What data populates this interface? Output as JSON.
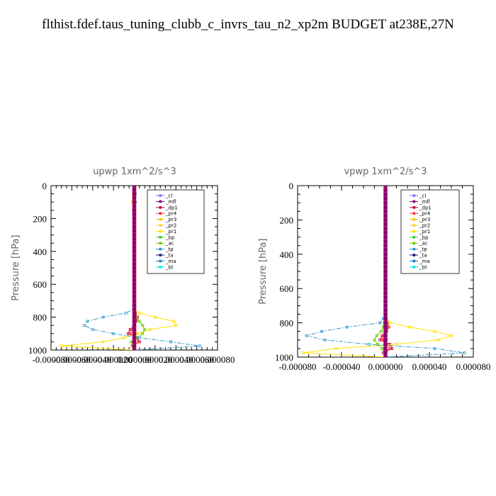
{
  "page_title": "flthist.fdef.taus_tuning_clubb_c_invrs_tau_n2_xp2m  BUDGET at238E,27N",
  "legend_labels": [
    "_cl",
    "_mfl",
    "_dp1",
    "_pr4",
    "_pr3",
    "_pr2",
    "_pr1",
    "_bp",
    "_ac",
    "_tp",
    "_ta",
    "_ma",
    "_bt"
  ],
  "legend_colors": [
    "#9966ff",
    "#7f007f",
    "#bf0040",
    "#ff3333",
    "#ffbf00",
    "#ffcc33",
    "#ffe000",
    "#33cc33",
    "#66cc00",
    "#3399cc",
    "#1a1a80",
    "#1a80c0",
    "#00e5e5"
  ],
  "chart_data": [
    {
      "type": "line",
      "title": "upwp   1xm^2/s^3",
      "ylabel": "Pressure [hPa]",
      "ylim": [
        0,
        1000
      ],
      "y_inverted": true,
      "xlim": [
        -8e-05,
        8e-05
      ],
      "xtick_labels": [
        "-0.000080",
        "-0.000060",
        "-0.000040",
        "-0.000020",
        "0.000000",
        "0.000020",
        "0.000040",
        "0.000060",
        "0.000080"
      ],
      "ytick_labels": [
        "0",
        "200",
        "400",
        "600",
        "800",
        "1000"
      ],
      "pressure_levels": [
        0,
        50,
        100,
        150,
        200,
        250,
        300,
        350,
        400,
        450,
        500,
        550,
        600,
        650,
        700,
        750,
        775,
        800,
        825,
        850,
        875,
        900,
        925,
        950,
        975,
        1000
      ],
      "series": [
        {
          "name": "_cl",
          "values": [
            0,
            0,
            0,
            0,
            0,
            0,
            0,
            0,
            0,
            0,
            0,
            0,
            0,
            0,
            0,
            0,
            0,
            0,
            0,
            0,
            0,
            0,
            0,
            0,
            0,
            0
          ]
        },
        {
          "name": "_mfl",
          "values": [
            0,
            0,
            0,
            0,
            0,
            0,
            0,
            0,
            0,
            0,
            0,
            0,
            0,
            0,
            0,
            0,
            0,
            0,
            0,
            0,
            0,
            0,
            0,
            0,
            0,
            0
          ]
        },
        {
          "name": "_dp1",
          "values": [
            0,
            0,
            0,
            0,
            0,
            0,
            0,
            0,
            0,
            0,
            0,
            0,
            0,
            0,
            0,
            0,
            1e-06,
            3e-06,
            2e-06,
            0,
            -4e-06,
            -6e-06,
            3e-06,
            5e-06,
            -2e-06,
            0
          ]
        },
        {
          "name": "_pr4",
          "values": [
            0,
            0,
            0,
            0,
            0,
            0,
            0,
            0,
            0,
            0,
            0,
            0,
            0,
            0,
            0,
            0,
            1e-06,
            2e-06,
            1e-06,
            0,
            -2e-06,
            -4e-06,
            2e-06,
            4e-06,
            -1e-06,
            0
          ]
        },
        {
          "name": "_pr3",
          "values": [
            0,
            0,
            0,
            0,
            0,
            0,
            0,
            0,
            0,
            0,
            0,
            0,
            0,
            0,
            0,
            0,
            0,
            0,
            0,
            0,
            0,
            0,
            0,
            0,
            0,
            0
          ]
        },
        {
          "name": "_pr2",
          "values": [
            0,
            -1e-06,
            -2e-06,
            -1e-06,
            0,
            0,
            0,
            0,
            0,
            0,
            0,
            0,
            0,
            0,
            0,
            0,
            0,
            0,
            0,
            0,
            0,
            0,
            0,
            0,
            0,
            0
          ]
        },
        {
          "name": "_pr1",
          "values": [
            0,
            -1e-06,
            -1e-06,
            0,
            0,
            0,
            0,
            0,
            0,
            0,
            0,
            0,
            0,
            0,
            0,
            0,
            5e-06,
            2e-05,
            3.8e-05,
            4e-05,
            1.5e-05,
            3e-06,
            -1e-05,
            -3e-05,
            -7e-05,
            0
          ]
        },
        {
          "name": "_bp",
          "values": [
            0,
            0,
            0,
            0,
            0,
            0,
            0,
            0,
            0,
            0,
            0,
            0,
            0,
            0,
            0,
            0,
            0,
            0,
            0,
            0,
            0,
            0,
            0,
            0,
            0,
            0
          ]
        },
        {
          "name": "_ac",
          "values": [
            0,
            0,
            0,
            0,
            0,
            0,
            0,
            0,
            0,
            0,
            0,
            0,
            0,
            0,
            0,
            0,
            0,
            2e-06,
            5e-06,
            8e-06,
            1e-05,
            8e-06,
            3e-06,
            -3e-06,
            -2e-06,
            0
          ]
        },
        {
          "name": "_tp",
          "values": [
            0,
            1e-06,
            1e-06,
            0,
            0,
            0,
            0,
            0,
            0,
            0,
            0,
            0,
            0,
            0,
            0,
            0,
            -8e-06,
            -3e-05,
            -4.5e-05,
            -4.8e-05,
            -4e-05,
            -2e-05,
            5e-06,
            3.5e-05,
            6.3e-05,
            0
          ]
        },
        {
          "name": "_ta",
          "values": [
            0,
            0,
            0,
            0,
            0,
            0,
            0,
            0,
            0,
            0,
            0,
            0,
            0,
            0,
            0,
            0,
            0,
            0,
            0,
            0,
            0,
            0,
            0,
            0,
            0,
            0
          ]
        },
        {
          "name": "_ma",
          "values": [
            0,
            0,
            0,
            0,
            0,
            0,
            0,
            0,
            0,
            0,
            0,
            0,
            0,
            0,
            0,
            0,
            0,
            0,
            0,
            0,
            0,
            0,
            0,
            0,
            0,
            0
          ]
        },
        {
          "name": "_bt",
          "values": [
            0,
            0,
            0,
            0,
            0,
            0,
            0,
            0,
            0,
            0,
            0,
            0,
            0,
            0,
            0,
            0,
            0,
            0,
            0,
            0,
            0,
            0,
            0,
            0,
            0,
            0
          ]
        }
      ]
    },
    {
      "type": "line",
      "title": "vpwp   1xm^2/s^3",
      "ylabel": "Pressure [hPa]",
      "ylim": [
        0,
        1000
      ],
      "y_inverted": true,
      "xlim": [
        -8e-05,
        8e-05
      ],
      "xtick_labels": [
        "-0.000080",
        "-0.000040",
        "0.000000",
        "0.000040",
        "0.000080"
      ],
      "ytick_labels": [
        "0",
        "200",
        "400",
        "600",
        "800",
        "1000"
      ],
      "pressure_levels": [
        0,
        50,
        100,
        150,
        200,
        250,
        300,
        350,
        400,
        450,
        500,
        550,
        600,
        650,
        700,
        750,
        775,
        800,
        825,
        850,
        875,
        900,
        925,
        950,
        975,
        1000
      ],
      "series": [
        {
          "name": "_cl",
          "values": [
            0,
            0,
            0,
            0,
            0,
            0,
            0,
            0,
            0,
            0,
            0,
            0,
            0,
            0,
            0,
            0,
            0,
            0,
            0,
            0,
            0,
            0,
            0,
            0,
            0,
            0
          ]
        },
        {
          "name": "_mfl",
          "values": [
            0,
            0,
            0,
            0,
            0,
            0,
            0,
            0,
            0,
            0,
            0,
            0,
            0,
            0,
            0,
            0,
            0,
            0,
            0,
            0,
            0,
            0,
            0,
            0,
            0,
            0
          ]
        },
        {
          "name": "_dp1",
          "values": [
            0,
            0,
            0,
            0,
            0,
            0,
            0,
            0,
            0,
            0,
            0,
            0,
            0,
            0,
            0,
            0,
            1e-06,
            2e-06,
            3e-06,
            1e-06,
            -3e-06,
            -5e-06,
            4e-06,
            6e-06,
            -2e-06,
            0
          ]
        },
        {
          "name": "_pr4",
          "values": [
            0,
            0,
            0,
            0,
            0,
            0,
            0,
            0,
            0,
            0,
            0,
            0,
            0,
            0,
            0,
            0,
            1e-06,
            1e-06,
            2e-06,
            0,
            -2e-06,
            -3e-06,
            2e-06,
            4e-06,
            -1e-06,
            0
          ]
        },
        {
          "name": "_pr3",
          "values": [
            0,
            0,
            0,
            0,
            0,
            0,
            0,
            0,
            0,
            0,
            0,
            0,
            0,
            0,
            0,
            0,
            0,
            0,
            0,
            0,
            0,
            0,
            0,
            0,
            0,
            0
          ]
        },
        {
          "name": "_pr2",
          "values": [
            0,
            0,
            0,
            0,
            0,
            0,
            0,
            0,
            0,
            0,
            0,
            0,
            0,
            0,
            0,
            0,
            0,
            0,
            0,
            0,
            0,
            0,
            0,
            0,
            0,
            0
          ]
        },
        {
          "name": "_pr1",
          "values": [
            0,
            0,
            0,
            0,
            0,
            0,
            0,
            0,
            0,
            0,
            0,
            0,
            0,
            0,
            0,
            0,
            1e-06,
            4e-06,
            2.2e-05,
            4.5e-05,
            6e-05,
            4.8e-05,
            1e-05,
            -4.5e-05,
            -7.5e-05,
            0
          ]
        },
        {
          "name": "_bp",
          "values": [
            0,
            0,
            0,
            0,
            0,
            0,
            0,
            0,
            0,
            0,
            0,
            0,
            0,
            0,
            0,
            0,
            0,
            0,
            0,
            0,
            0,
            0,
            0,
            0,
            0,
            0
          ]
        },
        {
          "name": "_ac",
          "values": [
            0,
            0,
            0,
            0,
            0,
            0,
            0,
            0,
            0,
            0,
            0,
            0,
            0,
            0,
            0,
            0,
            0,
            -1e-06,
            -2e-06,
            -4e-06,
            -8e-06,
            -1e-05,
            -7e-06,
            -3e-06,
            -1e-06,
            0
          ]
        },
        {
          "name": "_tp",
          "values": [
            0,
            0,
            0,
            0,
            0,
            0,
            0,
            0,
            0,
            0,
            0,
            0,
            0,
            0,
            0,
            0,
            -2e-06,
            -5e-06,
            -3.5e-05,
            -5.8e-05,
            -7.2e-05,
            -5.5e-05,
            -1.5e-05,
            4.5e-05,
            7.2e-05,
            0
          ]
        },
        {
          "name": "_ta",
          "values": [
            0,
            0,
            0,
            0,
            0,
            0,
            0,
            0,
            0,
            0,
            0,
            0,
            0,
            0,
            0,
            0,
            0,
            0,
            0,
            0,
            0,
            0,
            0,
            0,
            0,
            0
          ]
        },
        {
          "name": "_ma",
          "values": [
            0,
            0,
            0,
            0,
            0,
            0,
            0,
            0,
            0,
            0,
            0,
            0,
            0,
            0,
            0,
            0,
            0,
            0,
            0,
            0,
            0,
            0,
            0,
            0,
            0,
            0
          ]
        },
        {
          "name": "_bt",
          "values": [
            0,
            0,
            0,
            0,
            0,
            0,
            0,
            0,
            0,
            0,
            0,
            0,
            0,
            0,
            0,
            0,
            0,
            0,
            0,
            0,
            0,
            0,
            0,
            0,
            0,
            0
          ]
        }
      ]
    }
  ]
}
